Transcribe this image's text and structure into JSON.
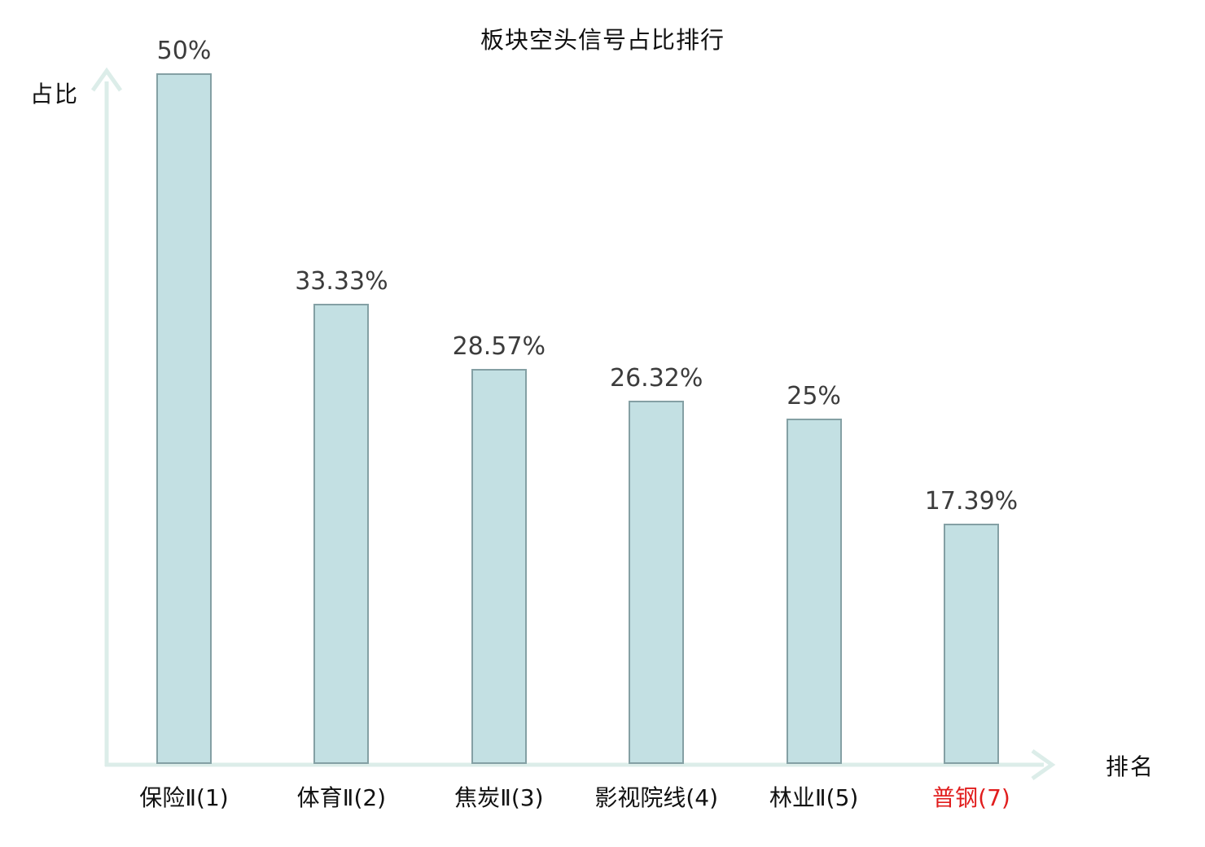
{
  "chart_data": {
    "type": "bar",
    "title": "板块空头信号占比排行",
    "xlabel": "排名",
    "ylabel": "占比",
    "categories": [
      "保险Ⅱ(1)",
      "体育Ⅱ(2)",
      "焦炭Ⅱ(3)",
      "影视院线(4)",
      "林业Ⅱ(5)",
      "普钢(7)"
    ],
    "values": [
      50,
      33.33,
      28.57,
      26.32,
      25,
      17.39
    ],
    "value_labels": [
      "50%",
      "33.33%",
      "28.57%",
      "26.32%",
      "25%",
      "17.39%"
    ],
    "ylim": [
      0,
      50
    ],
    "grid": false,
    "legend": "none",
    "highlighted_index": 5,
    "colors": {
      "bar_fill": "#c3e0e3",
      "bar_border": "#84a0a4",
      "axis": "#dcede9",
      "value_label": "#3c3c3c",
      "category_label": "#111111",
      "highlighted_category": "#e11d1d"
    }
  }
}
